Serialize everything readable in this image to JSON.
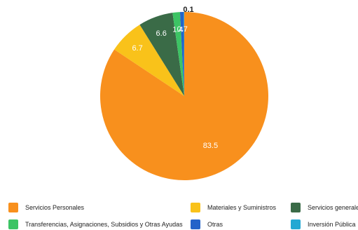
{
  "chart_data": {
    "type": "pie",
    "title": "",
    "slices": [
      {
        "name": "Servicios Personales",
        "value": 83.5,
        "label": "83.5",
        "color": "#F8901D"
      },
      {
        "name": "Materiales y Suministros",
        "value": 6.7,
        "label": "6.7",
        "color": "#F9C21A"
      },
      {
        "name": "Servicios generales",
        "value": 6.6,
        "label": "6.6",
        "color": "#3A6B47"
      },
      {
        "name": "Transferencias, Asignaciones, Subsidios y Otras Ayudas",
        "value": 1.4,
        "label": "1.4",
        "color": "#3CC464"
      },
      {
        "name": "Otras",
        "value": 0.7,
        "label": "0.7",
        "color": "#2463C9"
      },
      {
        "name": "Inversión Pública",
        "value": 0.1,
        "label": "0.1",
        "color": "#23A8D3"
      }
    ],
    "legend": {
      "position": "bottom",
      "items": [
        "Servicios Personales",
        "Materiales y Suministros",
        "Servicios generales",
        "Transferencias, Asignaciones, Subsidios y Otras Ayudas",
        "Otras",
        "Inversión Pública"
      ]
    }
  }
}
